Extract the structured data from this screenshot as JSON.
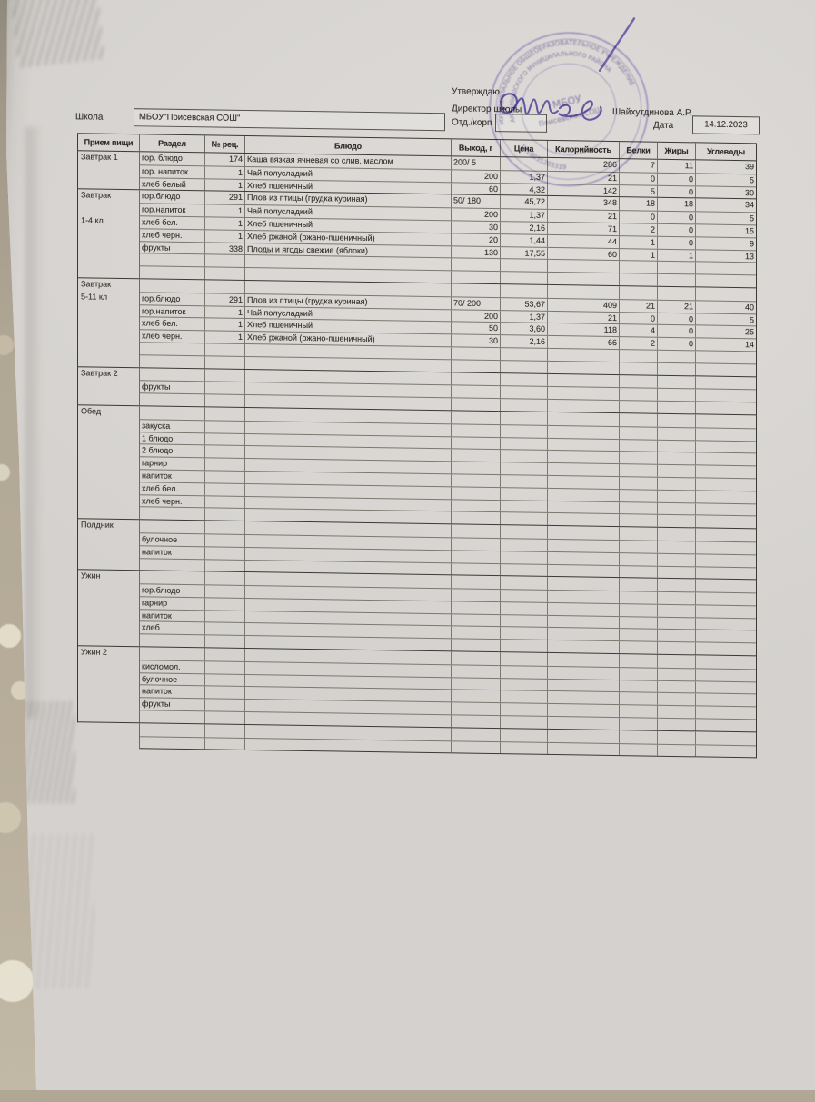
{
  "approval": {
    "approve_label": "Утверждаю",
    "director_label": "Директор школы",
    "director_name": "Шайхутдинова А.Р."
  },
  "form": {
    "school_label": "Школа",
    "school_value": "МБОУ\"Поисевская СОШ\"",
    "dept_label": "Отд./корп",
    "dept_value": "",
    "date_label": "Дата",
    "date_value": "14.12.2023"
  },
  "stamp": {
    "outer_text": "МУНИЦИПАЛЬНОЕ ОБЩЕОБРАЗОВАТЕЛЬНОЕ УЧРЕЖДЕНИЕ",
    "middle_text": "АКТАНЫШСКОГО МУНИЦИПАЛЬНОГО РАЙОНА",
    "number_text": "1610035203319",
    "center_line1": "МБОУ",
    "center_line2": "Поисевская СОШ"
  },
  "table": {
    "columns": [
      "Прием пищи",
      "Раздел",
      "№ рец.",
      "Блюдо",
      "Выход, г",
      "Цена",
      "Калорийность",
      "Белки",
      "Жиры",
      "Углеводы"
    ],
    "trailer_rows": 2,
    "sections": [
      {
        "meal": "Завтрак 1",
        "rows": [
          [
            "гор. блюдо",
            "174",
            "Каша вязкая ячневая со слив. маслом",
            "200/ 5",
            "",
            "286",
            "7",
            "11",
            "39"
          ],
          [
            "гор. напиток",
            "1",
            "Чай полусладкий",
            "200",
            "1,37",
            "21",
            "0",
            "0",
            "5"
          ],
          [
            "хлеб белый",
            "1",
            "Хлеб пшеничный",
            "60",
            "4,32",
            "142",
            "5",
            "0",
            "30"
          ]
        ]
      },
      {
        "meal": "Завтрак\n\n1-4 кл",
        "rows": [
          [
            "гор.блюдо",
            "291",
            "Плов из птицы (грудка куриная)",
            "50/ 180",
            "45,72",
            "348",
            "18",
            "18",
            "34"
          ],
          [
            "гор.напиток",
            "1",
            "Чай полусладкий",
            "200",
            "1,37",
            "21",
            "0",
            "0",
            "5"
          ],
          [
            "хлеб бел.",
            "1",
            "Хлеб пшеничный",
            "30",
            "2,16",
            "71",
            "2",
            "0",
            "15"
          ],
          [
            "хлеб черн.",
            "1",
            "Хлеб ржаной (ржано-пшеничный)",
            "20",
            "1,44",
            "44",
            "1",
            "0",
            "9"
          ],
          [
            "фрукты",
            "338",
            "Плоды и ягоды свежие (яблоки)",
            "130",
            "17,55",
            "60",
            "1",
            "1",
            "13"
          ],
          [],
          []
        ]
      },
      {
        "meal": "Завтрак\n5-11 кл",
        "rows": [
          [],
          [
            "гор.блюдо",
            "291",
            "Плов из птицы (грудка куриная)",
            "70/ 200",
            "53,67",
            "409",
            "21",
            "21",
            "40"
          ],
          [
            "гор.напиток",
            "1",
            "Чай полусладкий",
            "200",
            "1,37",
            "21",
            "0",
            "0",
            "5"
          ],
          [
            "хлеб бел.",
            "1",
            "Хлеб пшеничный",
            "50",
            "3,60",
            "118",
            "4",
            "0",
            "25"
          ],
          [
            "хлеб черн.",
            "1",
            "Хлеб ржаной (ржано-пшеничный)",
            "30",
            "2,16",
            "66",
            "2",
            "0",
            "14"
          ],
          [],
          []
        ]
      },
      {
        "meal": "Завтрак 2",
        "rows": [
          [],
          [
            "фрукты",
            "",
            "",
            "",
            "",
            "",
            "",
            "",
            ""
          ],
          []
        ]
      },
      {
        "meal": "Обед",
        "rows": [
          [],
          [
            "закуска",
            "",
            "",
            "",
            "",
            "",
            "",
            "",
            ""
          ],
          [
            "1 блюдо",
            "",
            "",
            "",
            "",
            "",
            "",
            "",
            ""
          ],
          [
            "2 блюдо",
            "",
            "",
            "",
            "",
            "",
            "",
            "",
            ""
          ],
          [
            "гарнир",
            "",
            "",
            "",
            "",
            "",
            "",
            "",
            ""
          ],
          [
            "напиток",
            "",
            "",
            "",
            "",
            "",
            "",
            "",
            ""
          ],
          [
            "хлеб бел.",
            "",
            "",
            "",
            "",
            "",
            "",
            "",
            ""
          ],
          [
            "хлеб черн.",
            "",
            "",
            "",
            "",
            "",
            "",
            "",
            ""
          ],
          []
        ]
      },
      {
        "meal": "Полдник",
        "rows": [
          [],
          [
            "булочное",
            "",
            "",
            "",
            "",
            "",
            "",
            "",
            ""
          ],
          [
            "напиток",
            "",
            "",
            "",
            "",
            "",
            "",
            "",
            ""
          ],
          []
        ]
      },
      {
        "meal": "Ужин",
        "rows": [
          [],
          [
            "гор.блюдо",
            "",
            "",
            "",
            "",
            "",
            "",
            "",
            ""
          ],
          [
            "гарнир",
            "",
            "",
            "",
            "",
            "",
            "",
            "",
            ""
          ],
          [
            "напиток",
            "",
            "",
            "",
            "",
            "",
            "",
            "",
            ""
          ],
          [
            "хлеб",
            "",
            "",
            "",
            "",
            "",
            "",
            "",
            ""
          ],
          []
        ]
      },
      {
        "meal": "Ужин 2",
        "rows": [
          [],
          [
            "кисломол.",
            "",
            "",
            "",
            "",
            "",
            "",
            "",
            ""
          ],
          [
            "булочное",
            "",
            "",
            "",
            "",
            "",
            "",
            "",
            ""
          ],
          [
            "напиток",
            "",
            "",
            "",
            "",
            "",
            "",
            "",
            ""
          ],
          [
            "фрукты",
            "",
            "",
            "",
            "",
            "",
            "",
            "",
            ""
          ],
          []
        ]
      }
    ]
  }
}
